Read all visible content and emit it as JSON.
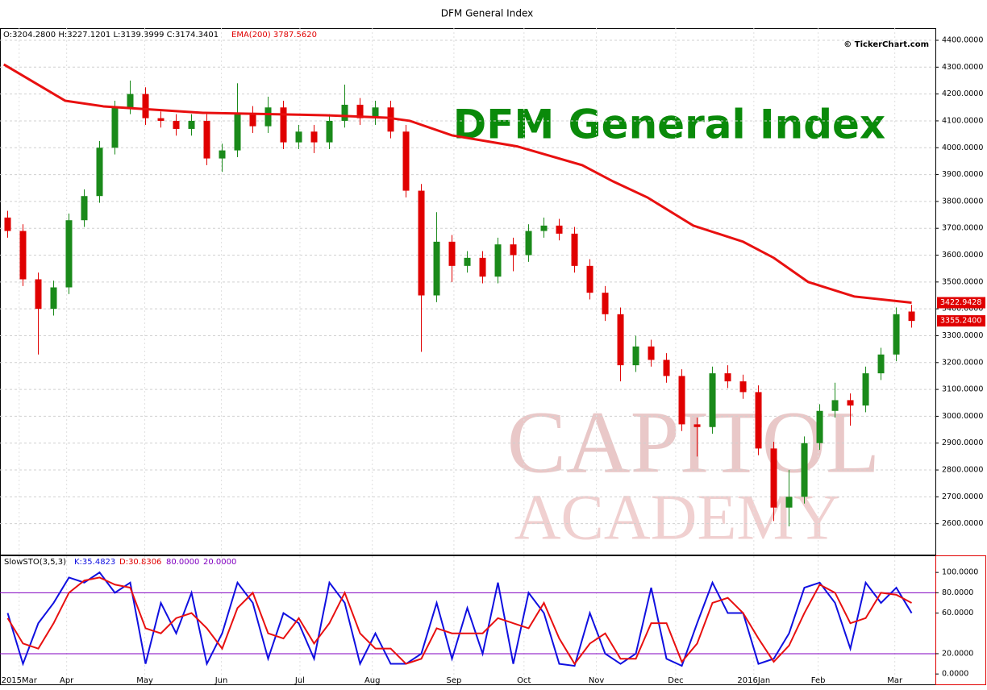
{
  "chart_data": {
    "type": "candlestick",
    "title": "DFM General Index",
    "headline": "DFM General Index",
    "ohlc_text": "O:3204.2800 H:3227.1201 L:3139.3999 C:3174.3401",
    "ema_text": "EMA(200) 3787.5620",
    "credit": "© TickerChart.com",
    "watermark": [
      "CAPITOL",
      "ACADEMY"
    ],
    "up_color": "#1a8a1a",
    "down_color": "#e00000",
    "xlim": [
      -1,
      243.2
    ],
    "xticks": [
      {
        "value": 4,
        "label": "2015Mar"
      },
      {
        "value": 16.4,
        "label": "Apr"
      },
      {
        "value": 36.8,
        "label": "May"
      },
      {
        "value": 56.8,
        "label": "Jun"
      },
      {
        "value": 77.3,
        "label": "Jul"
      },
      {
        "value": 96.2,
        "label": "Aug"
      },
      {
        "value": 117.5,
        "label": "Sep"
      },
      {
        "value": 135.8,
        "label": "Oct"
      },
      {
        "value": 154.7,
        "label": "Nov"
      },
      {
        "value": 175.4,
        "label": "Dec"
      },
      {
        "value": 195.8,
        "label": "2016Jan"
      },
      {
        "value": 212.6,
        "label": "Feb"
      },
      {
        "value": 232.6,
        "label": "Mar"
      }
    ],
    "ylim": [
      2485,
      4445
    ],
    "yticks": [
      {
        "value": 2600,
        "label": "2600.0000"
      },
      {
        "value": 2700,
        "label": "2700.0000"
      },
      {
        "value": 2800,
        "label": "2800.0000"
      },
      {
        "value": 2900,
        "label": "2900.0000"
      },
      {
        "value": 3000,
        "label": "3000.0000"
      },
      {
        "value": 3100,
        "label": "3100.0000"
      },
      {
        "value": 3200,
        "label": "3200.0000"
      },
      {
        "value": 3300,
        "label": "3300.0000"
      },
      {
        "value": 3400,
        "label": "3400.0000"
      },
      {
        "value": 3500,
        "label": "3500.0000"
      },
      {
        "value": 3600,
        "label": "3600.0000"
      },
      {
        "value": 3700,
        "label": "3700.0000"
      },
      {
        "value": 3800,
        "label": "3800.0000"
      },
      {
        "value": 3900,
        "label": "3900.0000"
      },
      {
        "value": 4000,
        "label": "4000.0000"
      },
      {
        "value": 4100,
        "label": "4100.0000"
      },
      {
        "value": 4200,
        "label": "4200.0000"
      },
      {
        "value": 4300,
        "label": "4300.0000"
      },
      {
        "value": 4400,
        "label": "4400.0000"
      }
    ],
    "last_values": [
      {
        "value": 3422.9428,
        "label": "3422.9428"
      },
      {
        "value": 3355.24,
        "label": "3355.2400"
      }
    ],
    "x": [
      1,
      5,
      9,
      13,
      17,
      21,
      25,
      29,
      33,
      37,
      41,
      45,
      49,
      53,
      57,
      61,
      65,
      69,
      73,
      77,
      81,
      85,
      89,
      93,
      97,
      101,
      105,
      109,
      113,
      117,
      121,
      125,
      129,
      133,
      137,
      141,
      145,
      149,
      153,
      157,
      161,
      165,
      169,
      173,
      177,
      181,
      185,
      189,
      193,
      197,
      201,
      205,
      209,
      213,
      217,
      221,
      225,
      229,
      233,
      237
    ],
    "open": [
      3740,
      3690,
      3510,
      3400,
      3480,
      3730,
      3820,
      4000,
      4150,
      4200,
      4110,
      4100,
      4070,
      4100,
      3960,
      3990,
      4130,
      4080,
      4150,
      4020,
      4060,
      4020,
      4100,
      4160,
      4110,
      4150,
      4060,
      3840,
      3450,
      3650,
      3560,
      3590,
      3520,
      3640,
      3600,
      3690,
      3710,
      3680,
      3560,
      3460,
      3380,
      3190,
      3260,
      3210,
      3150,
      2970,
      2960,
      3160,
      3130,
      3090,
      2880,
      2660,
      2700,
      2900,
      3020,
      3060,
      3040,
      3160,
      3230,
      3390
    ],
    "high": [
      3765,
      3715,
      3535,
      3505,
      3755,
      3845,
      4025,
      4175,
      4250,
      4225,
      4135,
      4125,
      4125,
      4125,
      4015,
      4240,
      4155,
      4190,
      4175,
      4085,
      4085,
      4125,
      4235,
      4185,
      4175,
      4175,
      4085,
      3865,
      3760,
      3675,
      3615,
      3615,
      3665,
      3665,
      3715,
      3740,
      3735,
      3705,
      3585,
      3485,
      3405,
      3300,
      3285,
      3235,
      3175,
      2995,
      3185,
      3190,
      3155,
      3115,
      2905,
      2800,
      2925,
      3045,
      3125,
      3085,
      3185,
      3255,
      3405,
      3415
    ],
    "low": [
      3665,
      3485,
      3230,
      3375,
      3455,
      3705,
      3795,
      3975,
      4125,
      4085,
      4075,
      4045,
      4045,
      3935,
      3910,
      3965,
      4055,
      4055,
      3995,
      3995,
      3980,
      3995,
      4075,
      4085,
      4085,
      4035,
      3815,
      3240,
      3425,
      3500,
      3535,
      3495,
      3495,
      3540,
      3575,
      3665,
      3655,
      3535,
      3435,
      3355,
      3130,
      3165,
      3185,
      3125,
      2945,
      2850,
      2935,
      3105,
      3065,
      2855,
      2610,
      2590,
      2675,
      2875,
      2995,
      2965,
      3015,
      3135,
      3205,
      3330
    ],
    "close": [
      3690,
      3510,
      3400,
      3480,
      3730,
      3820,
      4000,
      4150,
      4200,
      4110,
      4100,
      4070,
      4100,
      3960,
      3990,
      4130,
      4080,
      4150,
      4020,
      4060,
      4020,
      4100,
      4160,
      4110,
      4150,
      4060,
      3840,
      3450,
      3650,
      3560,
      3590,
      3520,
      3640,
      3600,
      3690,
      3710,
      3680,
      3560,
      3460,
      3380,
      3190,
      3260,
      3210,
      3150,
      2970,
      2960,
      3160,
      3130,
      3090,
      2880,
      2660,
      2700,
      2900,
      3020,
      3060,
      3040,
      3160,
      3230,
      3380,
      3355
    ],
    "ema": {
      "color": "#e81010",
      "x": [
        0,
        16,
        26,
        52,
        84,
        100,
        106,
        117,
        134,
        151,
        159,
        168,
        180,
        193,
        201,
        210,
        222,
        237
      ],
      "values": [
        4310,
        4175,
        4154,
        4130,
        4121,
        4112,
        4100,
        4046,
        4005,
        3935,
        3875,
        3815,
        3710,
        3650,
        3590,
        3500,
        3446,
        3422.9428
      ]
    },
    "stoch": {
      "label": "SlowSTO(3,5,3)",
      "k_text": "K:35.4823",
      "d_text": "D:30.8306",
      "upper_text": "80.0000",
      "lower_text": "20.0000",
      "ylim": [
        -11,
        116
      ],
      "yticks": [
        {
          "value": 0,
          "label": "0.0000"
        },
        {
          "value": 20,
          "label": "20.0000"
        },
        {
          "value": 60,
          "label": "60.0000"
        },
        {
          "value": 80,
          "label": "80.0000"
        },
        {
          "value": 100,
          "label": "100.0000"
        }
      ],
      "levels": [
        80,
        20
      ],
      "level_color": "#8000c0",
      "series": [
        {
          "name": "K",
          "color": "#1010e0",
          "values": [
            60,
            10,
            50,
            70,
            95,
            90,
            100,
            80,
            90,
            10,
            70,
            40,
            80,
            10,
            40,
            90,
            70,
            15,
            60,
            50,
            15,
            90,
            70,
            10,
            40,
            10,
            10,
            20,
            70,
            15,
            65,
            20,
            90,
            10,
            80,
            60,
            10,
            8,
            60,
            20,
            10,
            20,
            85,
            15,
            8,
            50,
            90,
            60,
            60,
            10,
            15,
            40,
            85,
            90,
            70,
            25,
            90,
            70,
            85,
            60
          ]
        },
        {
          "name": "D",
          "color": "#e81010",
          "values": [
            55,
            30,
            25,
            50,
            80,
            92,
            95,
            88,
            85,
            45,
            40,
            55,
            60,
            45,
            25,
            65,
            80,
            40,
            35,
            55,
            30,
            50,
            80,
            40,
            25,
            25,
            10,
            15,
            45,
            40,
            40,
            40,
            55,
            50,
            45,
            70,
            35,
            10,
            30,
            40,
            15,
            15,
            50,
            50,
            12,
            30,
            70,
            75,
            60,
            35,
            12,
            28,
            60,
            88,
            80,
            50,
            55,
            80,
            78,
            70
          ]
        }
      ]
    }
  }
}
